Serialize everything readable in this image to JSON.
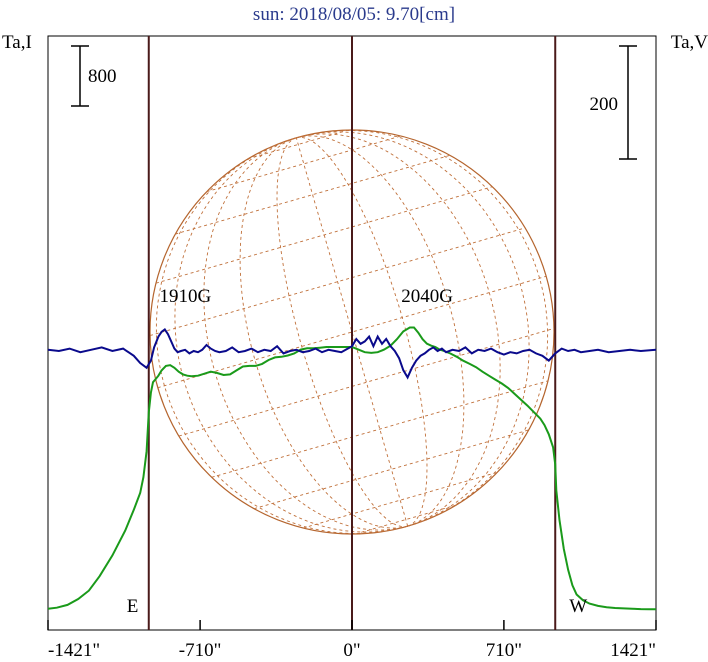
{
  "chart_data": {
    "type": "line",
    "title": "sun: 2018/08/05: 9.70[cm]",
    "left_axis_label": "Ta,I",
    "right_axis_label": "Ta,V",
    "x_ticks": [
      "-1421\"",
      "-710\"",
      "0\"",
      "710\"",
      "1421\""
    ],
    "x_tick_values": [
      -1421,
      -710,
      0,
      710,
      1421
    ],
    "xlim": [
      -1421,
      1421
    ],
    "scale_bars": [
      {
        "label": "800",
        "side": "left"
      },
      {
        "label": "200",
        "side": "right"
      }
    ],
    "limb_labels": {
      "east": "E",
      "west": "W"
    },
    "annotations": [
      {
        "text": "1910G",
        "x": -900
      },
      {
        "text": "2040G",
        "x": 230
      }
    ],
    "vertical_lines_x": [
      -950,
      0,
      950
    ],
    "series": [
      {
        "color": "#1a9a1a",
        "x": [
          -1421,
          -1380,
          -1330,
          -1280,
          -1230,
          -1180,
          -1120,
          -1060,
          -1020,
          -990,
          -975,
          -960,
          -950,
          -940,
          -930,
          -920,
          -905,
          -890,
          -870,
          -850,
          -830,
          -810,
          -790,
          -770,
          -750,
          -720,
          -690,
          -660,
          -630,
          -600,
          -570,
          -540,
          -510,
          -480,
          -450,
          -420,
          -390,
          -360,
          -330,
          -300,
          -270,
          -240,
          -210,
          -180,
          -150,
          -120,
          -90,
          -60,
          -30,
          0,
          30,
          60,
          90,
          120,
          150,
          180,
          210,
          240,
          270,
          290,
          310,
          330,
          350,
          370,
          390,
          410,
          430,
          460,
          490,
          520,
          550,
          580,
          610,
          640,
          670,
          700,
          730,
          760,
          790,
          820,
          850,
          880,
          900,
          920,
          940,
          950,
          955,
          970,
          990,
          1010,
          1030,
          1050,
          1080,
          1110,
          1150,
          1190,
          1230,
          1270,
          1310,
          1350,
          1390,
          1421
        ],
        "y": [
          40,
          48,
          70,
          115,
          180,
          290,
          450,
          640,
          800,
          930,
          1050,
          1250,
          1550,
          1700,
          1780,
          1800,
          1830,
          1870,
          1905,
          1910,
          1890,
          1860,
          1840,
          1830,
          1825,
          1830,
          1845,
          1860,
          1850,
          1835,
          1840,
          1870,
          1900,
          1905,
          1905,
          1920,
          1950,
          1970,
          1975,
          1985,
          2000,
          2030,
          2040,
          2040,
          2045,
          2050,
          2050,
          2050,
          2050,
          2050,
          2030,
          2010,
          2005,
          2010,
          2030,
          2060,
          2110,
          2170,
          2200,
          2200,
          2160,
          2110,
          2075,
          2060,
          2050,
          2030,
          2020,
          2000,
          1975,
          1945,
          1920,
          1895,
          1860,
          1830,
          1800,
          1770,
          1735,
          1690,
          1645,
          1600,
          1550,
          1500,
          1450,
          1380,
          1280,
          1150,
          950,
          720,
          500,
          340,
          220,
          150,
          105,
          80,
          62,
          52,
          46,
          43,
          40,
          38,
          37,
          36
        ]
      },
      {
        "color": "#0a0a8c",
        "x": [
          -1421,
          -1370,
          -1320,
          -1270,
          -1220,
          -1170,
          -1120,
          -1070,
          -1020,
          -990,
          -960,
          -940,
          -925,
          -905,
          -890,
          -875,
          -860,
          -845,
          -830,
          -815,
          -800,
          -780,
          -760,
          -740,
          -720,
          -700,
          -680,
          -660,
          -640,
          -620,
          -590,
          -560,
          -530,
          -500,
          -470,
          -440,
          -410,
          -380,
          -350,
          -320,
          -290,
          -260,
          -230,
          -200,
          -170,
          -140,
          -110,
          -80,
          -50,
          -20,
          0,
          20,
          40,
          60,
          80,
          100,
          120,
          140,
          160,
          180,
          200,
          220,
          240,
          260,
          280,
          300,
          320,
          340,
          360,
          380,
          400,
          420,
          440,
          470,
          500,
          530,
          560,
          590,
          620,
          650,
          680,
          710,
          740,
          770,
          800,
          830,
          860,
          890,
          920,
          950,
          980,
          1010,
          1040,
          1070,
          1110,
          1150,
          1200,
          1250,
          1300,
          1350,
          1421
        ],
        "y": [
          1,
          0,
          2,
          -1,
          1,
          3,
          0,
          2,
          -4,
          -10,
          -14,
          -8,
          3,
          12,
          16,
          18,
          14,
          8,
          2,
          -1,
          0,
          1,
          -2,
          0,
          -1,
          1,
          5,
          2,
          0,
          -1,
          0,
          3,
          -1,
          0,
          2,
          -1,
          1,
          0,
          4,
          -2,
          0,
          1,
          -1,
          0,
          2,
          -1,
          1,
          0,
          -1,
          2,
          4,
          10,
          6,
          8,
          12,
          4,
          12,
          6,
          10,
          4,
          0,
          -6,
          -16,
          -22,
          -14,
          -8,
          -4,
          -2,
          1,
          3,
          0,
          2,
          -1,
          1,
          0,
          3,
          -2,
          1,
          0,
          2,
          -1,
          -3,
          -1,
          -2,
          0,
          1,
          -2,
          -4,
          -8,
          -2,
          2,
          0,
          1,
          -1,
          0,
          1,
          -1,
          0,
          1,
          0,
          1
        ]
      }
    ]
  }
}
